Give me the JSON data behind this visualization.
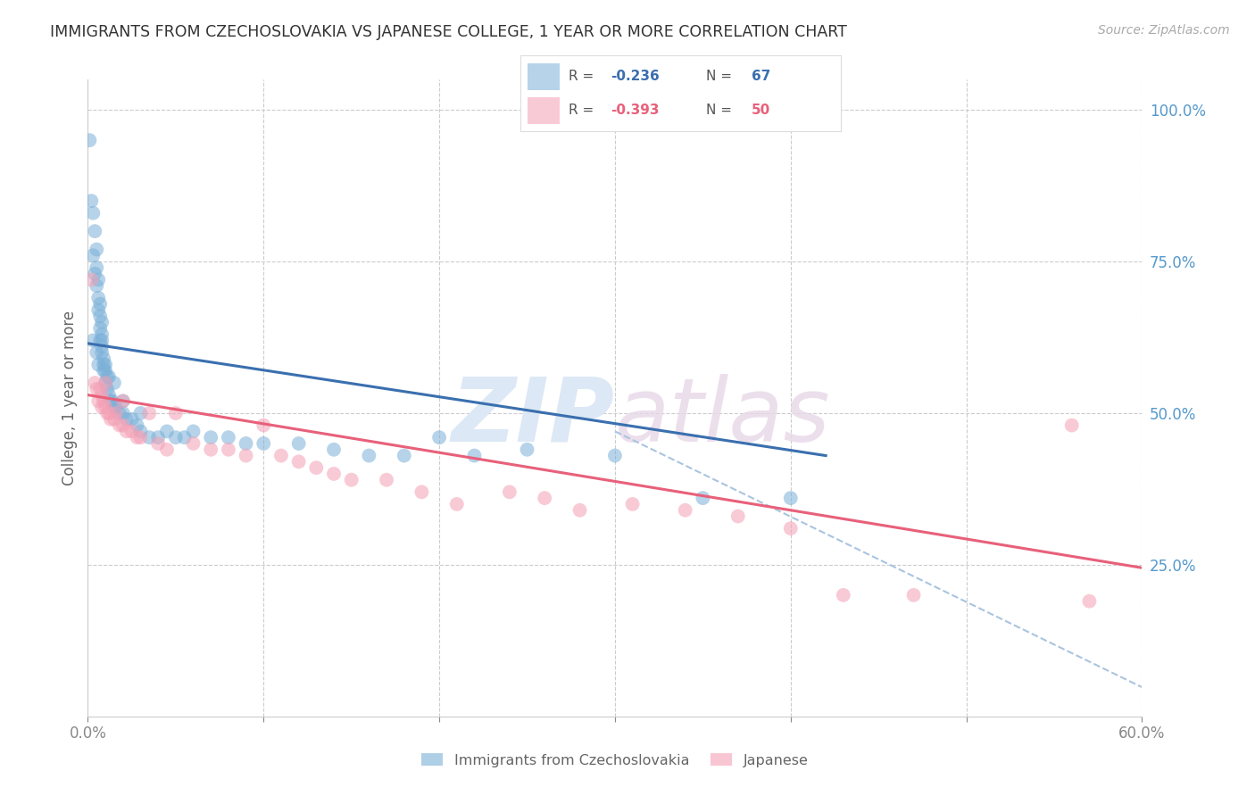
{
  "title": "IMMIGRANTS FROM CZECHOSLOVAKIA VS JAPANESE COLLEGE, 1 YEAR OR MORE CORRELATION CHART",
  "source": "Source: ZipAtlas.com",
  "ylabel_left": "College, 1 year or more",
  "right_ytick_labels": [
    "100.0%",
    "75.0%",
    "50.0%",
    "25.0%"
  ],
  "right_ytick_values": [
    1.0,
    0.75,
    0.5,
    0.25
  ],
  "xlim": [
    0.0,
    0.6
  ],
  "ylim": [
    0.0,
    1.05
  ],
  "xtick_labels": [
    "0.0%",
    "",
    "",
    "",
    "",
    "",
    "60.0%"
  ],
  "xtick_values": [
    0.0,
    0.1,
    0.2,
    0.3,
    0.4,
    0.5,
    0.6
  ],
  "blue_color": "#7ab0d8",
  "pink_color": "#f4a0b5",
  "blue_line_color": "#3a6faf",
  "pink_line_color": "#e8607a",
  "dashed_line_color": "#aac4e0",
  "background_color": "#ffffff",
  "grid_color": "#cccccc",
  "right_axis_color": "#5599cc",
  "watermark_color": "#dce8f5",
  "title_color": "#333333",
  "source_color": "#aaaaaa",
  "blue_scatter_x": [
    0.001,
    0.002,
    0.003,
    0.003,
    0.004,
    0.004,
    0.005,
    0.005,
    0.005,
    0.006,
    0.006,
    0.006,
    0.007,
    0.007,
    0.007,
    0.007,
    0.008,
    0.008,
    0.008,
    0.008,
    0.009,
    0.009,
    0.01,
    0.01,
    0.01,
    0.011,
    0.011,
    0.012,
    0.012,
    0.013,
    0.014,
    0.015,
    0.016,
    0.018,
    0.02,
    0.022,
    0.025,
    0.028,
    0.03,
    0.035,
    0.04,
    0.045,
    0.05,
    0.055,
    0.06,
    0.07,
    0.08,
    0.09,
    0.1,
    0.12,
    0.14,
    0.16,
    0.18,
    0.2,
    0.22,
    0.25,
    0.3,
    0.35,
    0.4,
    0.003,
    0.008,
    0.005,
    0.006,
    0.009,
    0.015,
    0.02,
    0.03
  ],
  "blue_scatter_y": [
    0.95,
    0.85,
    0.83,
    0.76,
    0.8,
    0.73,
    0.77,
    0.74,
    0.71,
    0.69,
    0.67,
    0.72,
    0.68,
    0.66,
    0.64,
    0.62,
    0.65,
    0.63,
    0.61,
    0.6,
    0.59,
    0.58,
    0.58,
    0.57,
    0.55,
    0.56,
    0.54,
    0.56,
    0.53,
    0.52,
    0.52,
    0.51,
    0.51,
    0.5,
    0.5,
    0.49,
    0.49,
    0.48,
    0.47,
    0.46,
    0.46,
    0.47,
    0.46,
    0.46,
    0.47,
    0.46,
    0.46,
    0.45,
    0.45,
    0.45,
    0.44,
    0.43,
    0.43,
    0.46,
    0.43,
    0.44,
    0.43,
    0.36,
    0.36,
    0.62,
    0.62,
    0.6,
    0.58,
    0.57,
    0.55,
    0.52,
    0.5
  ],
  "pink_scatter_x": [
    0.002,
    0.004,
    0.005,
    0.006,
    0.007,
    0.008,
    0.008,
    0.009,
    0.01,
    0.01,
    0.011,
    0.012,
    0.013,
    0.015,
    0.016,
    0.018,
    0.02,
    0.02,
    0.022,
    0.025,
    0.028,
    0.03,
    0.035,
    0.04,
    0.045,
    0.05,
    0.06,
    0.07,
    0.08,
    0.09,
    0.1,
    0.11,
    0.12,
    0.13,
    0.14,
    0.15,
    0.17,
    0.19,
    0.21,
    0.24,
    0.26,
    0.28,
    0.31,
    0.34,
    0.37,
    0.4,
    0.43,
    0.47,
    0.56,
    0.57
  ],
  "pink_scatter_y": [
    0.72,
    0.55,
    0.54,
    0.52,
    0.54,
    0.53,
    0.51,
    0.52,
    0.51,
    0.55,
    0.5,
    0.5,
    0.49,
    0.49,
    0.5,
    0.48,
    0.52,
    0.48,
    0.47,
    0.47,
    0.46,
    0.46,
    0.5,
    0.45,
    0.44,
    0.5,
    0.45,
    0.44,
    0.44,
    0.43,
    0.48,
    0.43,
    0.42,
    0.41,
    0.4,
    0.39,
    0.39,
    0.37,
    0.35,
    0.37,
    0.36,
    0.34,
    0.35,
    0.34,
    0.33,
    0.31,
    0.2,
    0.2,
    0.48,
    0.19
  ],
  "blue_regline_x": [
    0.0,
    0.42
  ],
  "blue_regline_y": [
    0.615,
    0.43
  ],
  "blue_dashline_x": [
    0.3,
    0.62
  ],
  "blue_dashline_y": [
    0.47,
    0.02
  ],
  "pink_regline_x": [
    0.0,
    0.6
  ],
  "pink_regline_y": [
    0.53,
    0.245
  ],
  "figsize": [
    14.06,
    8.92
  ],
  "dpi": 100
}
